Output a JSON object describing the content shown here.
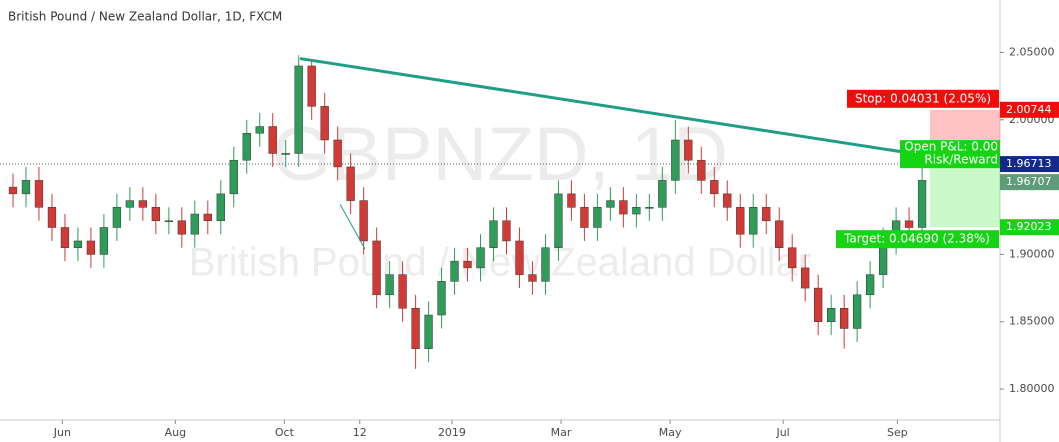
{
  "chart_data": {
    "type": "candlestick",
    "title": "British Pound / New Zealand Dollar, 1D, FXCM",
    "watermark": [
      "GBPNZD, 1D",
      "British Pound / New Zealand Dollar"
    ],
    "up_color": "#2f9c5a",
    "down_color": "#d23b35",
    "open": [
      1.95,
      1.945,
      1.955,
      1.935,
      1.92,
      1.905,
      1.91,
      1.9,
      1.92,
      1.935,
      1.94,
      1.935,
      1.925,
      1.925,
      1.915,
      1.93,
      1.925,
      1.945,
      1.97,
      1.99,
      1.995,
      1.975,
      1.975,
      2.04,
      2.01,
      1.985,
      1.965,
      1.94,
      1.91,
      1.87,
      1.885,
      1.86,
      1.83,
      1.855,
      1.88,
      1.895,
      1.89,
      1.905,
      1.925,
      1.91,
      1.885,
      1.88,
      1.905,
      1.945,
      1.935,
      1.92,
      1.935,
      1.94,
      1.93,
      1.935,
      1.935,
      1.955,
      1.985,
      1.97,
      1.955,
      1.945,
      1.935,
      1.915,
      1.935,
      1.925,
      1.905,
      1.89,
      1.875,
      1.85,
      1.86,
      1.845,
      1.87,
      1.885,
      1.91,
      1.925,
      1.92
    ],
    "high": [
      1.96,
      1.965,
      1.965,
      1.945,
      1.93,
      1.92,
      1.92,
      1.93,
      1.945,
      1.95,
      1.95,
      1.945,
      1.935,
      1.935,
      1.94,
      1.94,
      1.955,
      1.98,
      2.0,
      2.005,
      2.005,
      1.985,
      2.048,
      2.045,
      2.02,
      1.995,
      1.975,
      1.95,
      1.92,
      1.895,
      1.895,
      1.87,
      1.865,
      1.89,
      1.905,
      1.905,
      1.915,
      1.935,
      1.935,
      1.92,
      1.895,
      1.915,
      1.955,
      1.955,
      1.945,
      1.945,
      1.95,
      1.95,
      1.945,
      1.945,
      1.965,
      2.0,
      1.995,
      1.98,
      1.965,
      1.955,
      1.945,
      1.945,
      1.945,
      1.935,
      1.915,
      1.9,
      1.885,
      1.87,
      1.87,
      1.88,
      1.895,
      1.92,
      1.935,
      1.935,
      1.965
    ],
    "low": [
      1.935,
      1.935,
      1.925,
      1.91,
      1.895,
      1.895,
      1.89,
      1.89,
      1.91,
      1.925,
      1.925,
      1.915,
      1.915,
      1.905,
      1.905,
      1.915,
      1.915,
      1.935,
      1.96,
      1.98,
      1.965,
      1.965,
      1.965,
      2.0,
      1.975,
      1.955,
      1.93,
      1.9,
      1.86,
      1.86,
      1.85,
      1.815,
      1.82,
      1.845,
      1.87,
      1.88,
      1.88,
      1.895,
      1.9,
      1.875,
      1.87,
      1.87,
      1.895,
      1.925,
      1.91,
      1.91,
      1.925,
      1.92,
      1.92,
      1.925,
      1.925,
      1.945,
      1.96,
      1.945,
      1.935,
      1.925,
      1.905,
      1.905,
      1.915,
      1.895,
      1.88,
      1.865,
      1.84,
      1.84,
      1.83,
      1.835,
      1.86,
      1.875,
      1.9,
      1.91,
      1.91
    ],
    "close": [
      1.945,
      1.955,
      1.935,
      1.92,
      1.905,
      1.91,
      1.9,
      1.92,
      1.935,
      1.94,
      1.935,
      1.925,
      1.925,
      1.915,
      1.93,
      1.925,
      1.945,
      1.97,
      1.99,
      1.995,
      1.975,
      1.975,
      2.04,
      2.01,
      1.985,
      1.965,
      1.94,
      1.91,
      1.87,
      1.885,
      1.86,
      1.83,
      1.855,
      1.88,
      1.895,
      1.89,
      1.905,
      1.925,
      1.91,
      1.885,
      1.88,
      1.905,
      1.945,
      1.935,
      1.92,
      1.935,
      1.94,
      1.93,
      1.935,
      1.935,
      1.955,
      1.985,
      1.97,
      1.955,
      1.945,
      1.935,
      1.915,
      1.935,
      1.925,
      1.905,
      1.89,
      1.875,
      1.85,
      1.86,
      1.845,
      1.87,
      1.885,
      1.91,
      1.925,
      1.92,
      1.955
    ],
    "xlim": [
      -1,
      76
    ],
    "xticks": [
      {
        "value": 3.8,
        "label": "Jun"
      },
      {
        "value": 12.5,
        "label": "Aug"
      },
      {
        "value": 20.9,
        "label": "Oct"
      },
      {
        "value": 26.7,
        "label": "12"
      },
      {
        "value": 33.8,
        "label": "2019"
      },
      {
        "value": 42.2,
        "label": "Mar"
      },
      {
        "value": 50.6,
        "label": "May"
      },
      {
        "value": 59.3,
        "label": "Jul"
      },
      {
        "value": 68.1,
        "label": "Sep"
      }
    ],
    "ylim": [
      1.777,
      2.089
    ],
    "yticks": [
      {
        "value": 1.8,
        "label": "1.80000"
      },
      {
        "value": 1.85,
        "label": "1.85000"
      },
      {
        "value": 1.9,
        "label": "1.90000"
      },
      {
        "value": 1.95,
        "label": "1.95000"
      },
      {
        "value": 2.0,
        "label": "2.00000"
      },
      {
        "value": 2.05,
        "label": "2.05000"
      }
    ],
    "last_price": 1.96713,
    "trendlines": [
      {
        "x": [
          22.1,
          70.6
        ],
        "y": [
          2.0455,
          1.973
        ],
        "color": "#1f9e87",
        "width": 3
      },
      {
        "x": [
          25.2,
          27.1
        ],
        "y": [
          1.937,
          1.904
        ],
        "color": "#1f9e87",
        "width": 1
      }
    ],
    "position": {
      "x_start": 70.6,
      "entry": 1.96707,
      "stop": 2.00744,
      "target": 1.92023,
      "stop_label": "Stop: 0.04031 (2.05%)",
      "target_label": "Target: 0.04690 (2.38%)",
      "pnl_label": "Open P&L: 0.00",
      "rr_label": "Risk/Reward"
    },
    "price_tags": [
      {
        "value": 2.00744,
        "color": "#f20d0d"
      },
      {
        "value": 1.96713,
        "color": "#132a8c"
      },
      {
        "value": 1.96707,
        "color": "#5e9b78"
      },
      {
        "value": 1.92023,
        "color": "#14d414"
      }
    ]
  }
}
